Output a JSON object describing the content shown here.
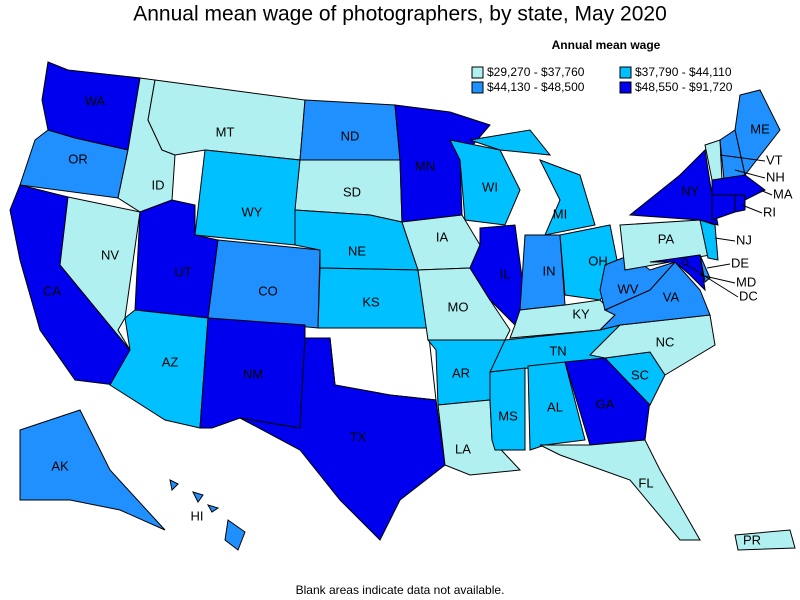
{
  "title": "Annual mean wage of photographers, by state, May 2020",
  "legend": {
    "title": "Annual mean wage",
    "items": [
      {
        "label": "$29,270 - $37,760",
        "color": "#b0f0f0"
      },
      {
        "label": "$37,790 - $44,110",
        "color": "#00c0ff"
      },
      {
        "label": "$44,130 - $48,500",
        "color": "#2090ff"
      },
      {
        "label": "$48,550 - $91,720",
        "color": "#0000ee"
      }
    ]
  },
  "footnote": "Blank areas indicate data not available.",
  "states": [
    {
      "label": "WA",
      "color": "#0000ee"
    },
    {
      "label": "OR",
      "color": "#2090ff"
    },
    {
      "label": "CA",
      "color": "#0000ee"
    },
    {
      "label": "NV",
      "color": "#b0f0f0"
    },
    {
      "label": "ID",
      "color": "#b0f0f0"
    },
    {
      "label": "MT",
      "color": "#b0f0f0"
    },
    {
      "label": "WY",
      "color": "#00c0ff"
    },
    {
      "label": "UT",
      "color": "#0000ee"
    },
    {
      "label": "AZ",
      "color": "#00c0ff"
    },
    {
      "label": "CO",
      "color": "#2090ff"
    },
    {
      "label": "NM",
      "color": "#0000ee"
    },
    {
      "label": "ND",
      "color": "#2090ff"
    },
    {
      "label": "SD",
      "color": "#b0f0f0"
    },
    {
      "label": "NE",
      "color": "#00c0ff"
    },
    {
      "label": "KS",
      "color": "#00c0ff"
    },
    {
      "label": "TX",
      "color": "#0000ee"
    },
    {
      "label": "MN",
      "color": "#0000ee"
    },
    {
      "label": "IA",
      "color": "#b0f0f0"
    },
    {
      "label": "MO",
      "color": "#b0f0f0"
    },
    {
      "label": "AR",
      "color": "#00c0ff"
    },
    {
      "label": "LA",
      "color": "#b0f0f0"
    },
    {
      "label": "WI",
      "color": "#00c0ff"
    },
    {
      "label": "IL",
      "color": "#0000ee"
    },
    {
      "label": "MI",
      "color": "#00c0ff"
    },
    {
      "label": "IN",
      "color": "#2090ff"
    },
    {
      "label": "OH",
      "color": "#00c0ff"
    },
    {
      "label": "KY",
      "color": "#b0f0f0"
    },
    {
      "label": "TN",
      "color": "#00c0ff"
    },
    {
      "label": "MS",
      "color": "#00c0ff"
    },
    {
      "label": "AL",
      "color": "#00c0ff"
    },
    {
      "label": "GA",
      "color": "#0000ee"
    },
    {
      "label": "FL",
      "color": "#b0f0f0"
    },
    {
      "label": "SC",
      "color": "#00c0ff"
    },
    {
      "label": "NC",
      "color": "#b0f0f0"
    },
    {
      "label": "VA",
      "color": "#2090ff"
    },
    {
      "label": "WV",
      "color": "#2090ff"
    },
    {
      "label": "PA",
      "color": "#b0f0f0"
    },
    {
      "label": "NY",
      "color": "#0000ee"
    },
    {
      "label": "ME",
      "color": "#2090ff"
    },
    {
      "label": "VT",
      "color": "#b0f0f0"
    },
    {
      "label": "NH",
      "color": "#2090ff"
    },
    {
      "label": "MA",
      "color": "#0000ee"
    },
    {
      "label": "RI",
      "color": "#0000ee"
    },
    {
      "label": "NJ",
      "color": "#00c0ff"
    },
    {
      "label": "DE",
      "color": "#2090ff"
    },
    {
      "label": "MD",
      "color": "#0000ee"
    },
    {
      "label": "DC",
      "color": "#0000ee"
    },
    {
      "label": "AK",
      "color": "#2090ff"
    },
    {
      "label": "HI",
      "color": "#2090ff"
    },
    {
      "label": "PR",
      "color": "#b0f0f0"
    },
    {
      "color": "#0000ee"
    }
  ]
}
